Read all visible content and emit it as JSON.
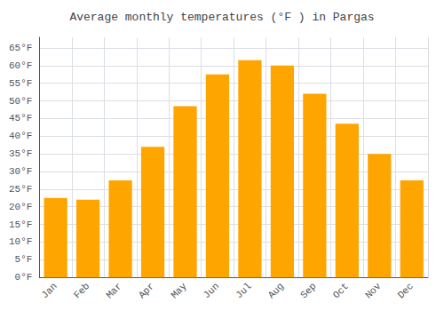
{
  "chart_data": {
    "type": "bar",
    "title": "Average monthly temperatures (°F ) in Pargas",
    "categories": [
      "Jan",
      "Feb",
      "Mar",
      "Apr",
      "May",
      "Jun",
      "Jul",
      "Aug",
      "Sep",
      "Oct",
      "Nov",
      "Dec"
    ],
    "values": [
      22.5,
      22.0,
      27.5,
      37.0,
      48.5,
      57.5,
      61.5,
      60.0,
      52.0,
      43.5,
      35.0,
      27.5
    ],
    "color": "#FFA500",
    "ylim": [
      0,
      68
    ],
    "yticks": [
      {
        "value": 0,
        "label": "0°F"
      },
      {
        "value": 5,
        "label": "5°F"
      },
      {
        "value": 10,
        "label": "10°F"
      },
      {
        "value": 15,
        "label": "15°F"
      },
      {
        "value": 20,
        "label": "20°F"
      },
      {
        "value": 25,
        "label": "25°F"
      },
      {
        "value": 30,
        "label": "30°F"
      },
      {
        "value": 35,
        "label": "35°F"
      },
      {
        "value": 40,
        "label": "40°F"
      },
      {
        "value": 45,
        "label": "45°F"
      },
      {
        "value": 50,
        "label": "50°F"
      },
      {
        "value": 55,
        "label": "55°F"
      },
      {
        "value": 60,
        "label": "60°F"
      },
      {
        "value": 65,
        "label": "65°F"
      }
    ],
    "grid": true
  }
}
